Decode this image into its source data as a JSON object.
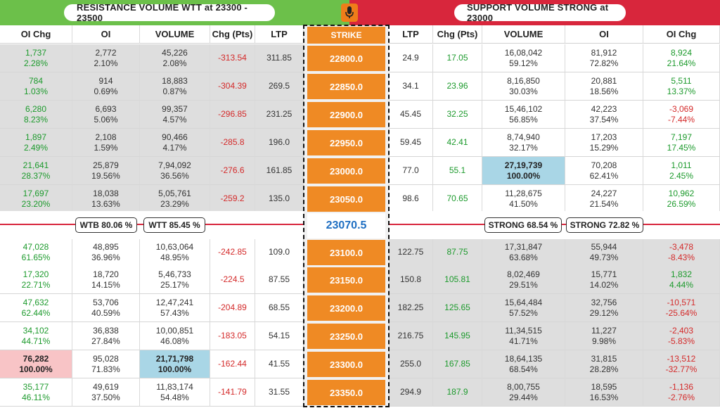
{
  "banners": {
    "resistance": "RESISTANCE VOLUME WTT at 23300 - 23500",
    "support": "SUPPORT VOLUME STRONG at 23000"
  },
  "headers": [
    "OI Chg",
    "OI",
    "VOLUME",
    "Chg (Pts)",
    "LTP",
    "STRIKE",
    "LTP",
    "Chg (Pts)",
    "VOLUME",
    "OI",
    "OI Chg"
  ],
  "spot": "23070.5",
  "badges": {
    "wtb": "WTB 80.06 %",
    "wtt": "WTT 85.45 %",
    "strong1": "STRONG 68.54 %",
    "strong2": "STRONG 72.82 %"
  },
  "colors": {
    "resistance_banner": "#6cc04a",
    "support_banner": "#d8263c",
    "strike_orange": "#ef8a24",
    "spot_blue": "#1f6fc2",
    "positive": "#1c9a2c",
    "negative": "#d42a2a",
    "highlight_blue": "#a9d6e6",
    "highlight_pink": "#f8c4c6"
  },
  "icons": {
    "mic": "microphone-icon"
  },
  "rows": [
    {
      "strike": "22800.0",
      "c_oichg": "1,737",
      "c_oichg_pct": "2.28%",
      "c_oi": "2,772",
      "c_oi_pct": "2.10%",
      "c_vol": "45,226",
      "c_vol_pct": "2.08%",
      "c_chg": "-313.54",
      "c_ltp": "311.85",
      "p_ltp": "24.9",
      "p_chg": "17.05",
      "p_vol": "16,08,042",
      "p_vol_pct": "59.12%",
      "p_oi": "81,912",
      "p_oi_pct": "72.82%",
      "p_oichg": "8,924",
      "p_oichg_pct": "21.64%"
    },
    {
      "strike": "22850.0",
      "c_oichg": "784",
      "c_oichg_pct": "1.03%",
      "c_oi": "914",
      "c_oi_pct": "0.69%",
      "c_vol": "18,883",
      "c_vol_pct": "0.87%",
      "c_chg": "-304.39",
      "c_ltp": "269.5",
      "p_ltp": "34.1",
      "p_chg": "23.96",
      "p_vol": "8,16,850",
      "p_vol_pct": "30.03%",
      "p_oi": "20,881",
      "p_oi_pct": "18.56%",
      "p_oichg": "5,511",
      "p_oichg_pct": "13.37%"
    },
    {
      "strike": "22900.0",
      "c_oichg": "6,280",
      "c_oichg_pct": "8.23%",
      "c_oi": "6,693",
      "c_oi_pct": "5.06%",
      "c_vol": "99,357",
      "c_vol_pct": "4.57%",
      "c_chg": "-296.85",
      "c_ltp": "231.25",
      "p_ltp": "45.45",
      "p_chg": "32.25",
      "p_vol": "15,46,102",
      "p_vol_pct": "56.85%",
      "p_oi": "42,223",
      "p_oi_pct": "37.54%",
      "p_oichg": "-3,069",
      "p_oichg_pct": "-7.44%"
    },
    {
      "strike": "22950.0",
      "c_oichg": "1,897",
      "c_oichg_pct": "2.49%",
      "c_oi": "2,108",
      "c_oi_pct": "1.59%",
      "c_vol": "90,466",
      "c_vol_pct": "4.17%",
      "c_chg": "-285.8",
      "c_ltp": "196.0",
      "p_ltp": "59.45",
      "p_chg": "42.41",
      "p_vol": "8,74,940",
      "p_vol_pct": "32.17%",
      "p_oi": "17,203",
      "p_oi_pct": "15.29%",
      "p_oichg": "7,197",
      "p_oichg_pct": "17.45%"
    },
    {
      "strike": "23000.0",
      "c_oichg": "21,641",
      "c_oichg_pct": "28.37%",
      "c_oi": "25,879",
      "c_oi_pct": "19.56%",
      "c_vol": "7,94,092",
      "c_vol_pct": "36.56%",
      "c_chg": "-276.6",
      "c_ltp": "161.85",
      "p_ltp": "77.0",
      "p_chg": "55.1",
      "p_vol": "27,19,739",
      "p_vol_pct": "100.00%",
      "p_oi": "70,208",
      "p_oi_pct": "62.41%",
      "p_oichg": "1,011",
      "p_oichg_pct": "2.45%"
    },
    {
      "strike": "23050.0",
      "c_oichg": "17,697",
      "c_oichg_pct": "23.20%",
      "c_oi": "18,038",
      "c_oi_pct": "13.63%",
      "c_vol": "5,05,761",
      "c_vol_pct": "23.29%",
      "c_chg": "-259.2",
      "c_ltp": "135.0",
      "p_ltp": "98.6",
      "p_chg": "70.65",
      "p_vol": "11,28,675",
      "p_vol_pct": "41.50%",
      "p_oi": "24,227",
      "p_oi_pct": "21.54%",
      "p_oichg": "10,962",
      "p_oichg_pct": "26.59%"
    },
    {
      "strike": "23100.0",
      "c_oichg": "47,028",
      "c_oichg_pct": "61.65%",
      "c_oi": "48,895",
      "c_oi_pct": "36.96%",
      "c_vol": "10,63,064",
      "c_vol_pct": "48.95%",
      "c_chg": "-242.85",
      "c_ltp": "109.0",
      "p_ltp": "122.75",
      "p_chg": "87.75",
      "p_vol": "17,31,847",
      "p_vol_pct": "63.68%",
      "p_oi": "55,944",
      "p_oi_pct": "49.73%",
      "p_oichg": "-3,478",
      "p_oichg_pct": "-8.43%"
    },
    {
      "strike": "23150.0",
      "c_oichg": "17,320",
      "c_oichg_pct": "22.71%",
      "c_oi": "18,720",
      "c_oi_pct": "14.15%",
      "c_vol": "5,46,733",
      "c_vol_pct": "25.17%",
      "c_chg": "-224.5",
      "c_ltp": "87.55",
      "p_ltp": "150.8",
      "p_chg": "105.81",
      "p_vol": "8,02,469",
      "p_vol_pct": "29.51%",
      "p_oi": "15,771",
      "p_oi_pct": "14.02%",
      "p_oichg": "1,832",
      "p_oichg_pct": "4.44%"
    },
    {
      "strike": "23200.0",
      "c_oichg": "47,632",
      "c_oichg_pct": "62.44%",
      "c_oi": "53,706",
      "c_oi_pct": "40.59%",
      "c_vol": "12,47,241",
      "c_vol_pct": "57.43%",
      "c_chg": "-204.89",
      "c_ltp": "68.55",
      "p_ltp": "182.25",
      "p_chg": "125.65",
      "p_vol": "15,64,484",
      "p_vol_pct": "57.52%",
      "p_oi": "32,756",
      "p_oi_pct": "29.12%",
      "p_oichg": "-10,571",
      "p_oichg_pct": "-25.64%"
    },
    {
      "strike": "23250.0",
      "c_oichg": "34,102",
      "c_oichg_pct": "44.71%",
      "c_oi": "36,838",
      "c_oi_pct": "27.84%",
      "c_vol": "10,00,851",
      "c_vol_pct": "46.08%",
      "c_chg": "-183.05",
      "c_ltp": "54.15",
      "p_ltp": "216.75",
      "p_chg": "145.95",
      "p_vol": "11,34,515",
      "p_vol_pct": "41.71%",
      "p_oi": "11,227",
      "p_oi_pct": "9.98%",
      "p_oichg": "-2,403",
      "p_oichg_pct": "-5.83%"
    },
    {
      "strike": "23300.0",
      "c_oichg": "76,282",
      "c_oichg_pct": "100.00%",
      "c_oi": "95,028",
      "c_oi_pct": "71.83%",
      "c_vol": "21,71,798",
      "c_vol_pct": "100.00%",
      "c_chg": "-162.44",
      "c_ltp": "41.55",
      "p_ltp": "255.0",
      "p_chg": "167.85",
      "p_vol": "18,64,135",
      "p_vol_pct": "68.54%",
      "p_oi": "31,815",
      "p_oi_pct": "28.28%",
      "p_oichg": "-13,512",
      "p_oichg_pct": "-32.77%"
    },
    {
      "strike": "23350.0",
      "c_oichg": "35,177",
      "c_oichg_pct": "46.11%",
      "c_oi": "49,619",
      "c_oi_pct": "37.50%",
      "c_vol": "11,83,174",
      "c_vol_pct": "54.48%",
      "c_chg": "-141.79",
      "c_ltp": "31.55",
      "p_ltp": "294.9",
      "p_chg": "187.9",
      "p_vol": "8,00,755",
      "p_vol_pct": "29.44%",
      "p_oi": "18,595",
      "p_oi_pct": "16.53%",
      "p_oichg": "-1,136",
      "p_oichg_pct": "-2.76%"
    }
  ]
}
